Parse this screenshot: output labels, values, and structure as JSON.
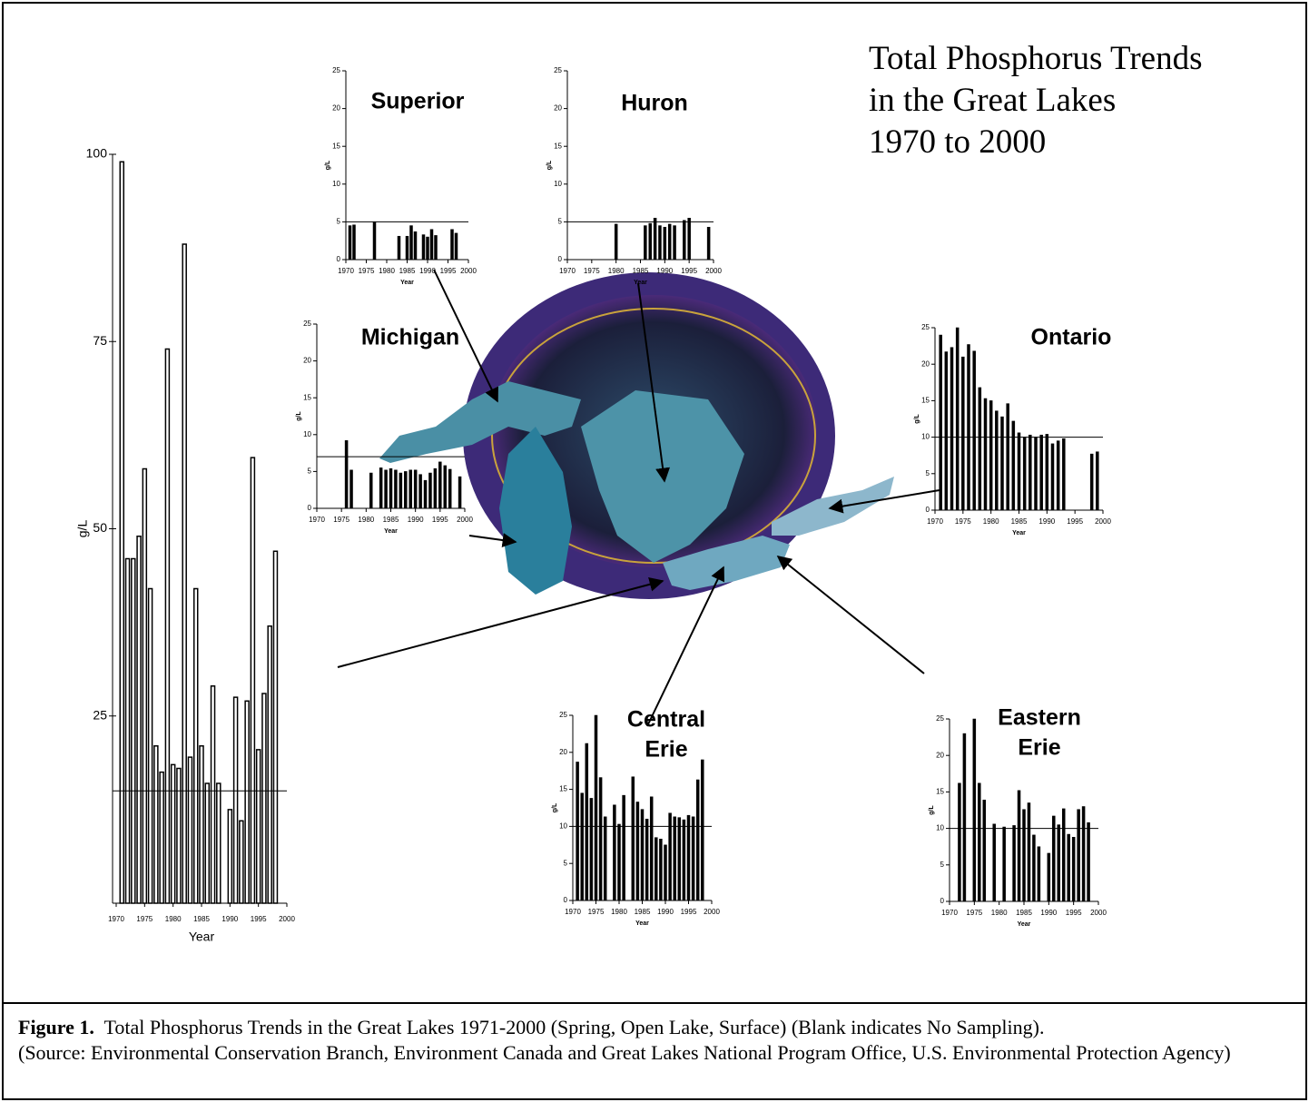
{
  "figure_title": [
    "Total Phosphorus Trends",
    "in the Great Lakes",
    "1970 to 2000"
  ],
  "caption": {
    "label": "Figure 1.",
    "text": "Total Phosphorus Trends in the Great Lakes 1971-2000 (Spring, Open Lake, Surface) (Blank indicates No Sampling).",
    "source": "(Source:  Environmental Conservation Branch, Environment Canada and Great Lakes National Program Office, U.S. Environmental Protection Agency)"
  },
  "chart_data": [
    {
      "type": "bar",
      "xlabel": "Year",
      "ylabel": "g/L",
      "color": "#000000",
      "x": [
        1971,
        1972,
        1973,
        1974,
        1975,
        1976,
        1977,
        1978,
        1979,
        1980,
        1981,
        1982,
        1983,
        1984,
        1985,
        1986,
        1987,
        1988,
        1990,
        1991,
        1992,
        1993,
        1994,
        1995,
        1996,
        1997,
        1998
      ],
      "values": [
        99,
        46,
        46,
        49,
        58,
        42,
        21,
        17.5,
        74,
        18.5,
        18,
        88,
        19.5,
        42,
        21,
        16,
        29,
        16,
        12.5,
        27.5,
        11,
        27,
        59.5,
        20.5,
        28,
        37,
        47
      ],
      "reference_line": 15,
      "xlim": [
        1970,
        2000
      ],
      "xticks": [
        1970,
        1975,
        1980,
        1985,
        1990,
        1995,
        2000
      ],
      "ylim": [
        0,
        100
      ],
      "yticks": [
        25,
        50,
        75,
        100
      ]
    },
    {
      "type": "bar",
      "title": [
        "Superior"
      ],
      "xlabel": "Year",
      "ylabel": "g/L",
      "color": "#000000",
      "x": [
        1971,
        1972,
        1977,
        1983,
        1985,
        1986,
        1987,
        1989,
        1990,
        1991,
        1992,
        1996,
        1997
      ],
      "values": [
        4.5,
        4.6,
        5,
        3.1,
        3.1,
        4.5,
        3.7,
        3.3,
        3,
        4,
        3.2,
        4,
        3.5
      ],
      "reference_line": 5,
      "xlim": [
        1970,
        2000
      ],
      "xticks": [
        1970,
        1975,
        1980,
        1985,
        1990,
        1995,
        2000
      ],
      "ylim": [
        0,
        25
      ],
      "yticks": [
        0,
        5,
        10,
        15,
        20,
        25
      ]
    },
    {
      "type": "bar",
      "title": [
        "Huron"
      ],
      "xlabel": "Year",
      "ylabel": "g/L",
      "color": "#000000",
      "x": [
        1980,
        1986,
        1987,
        1988,
        1989,
        1990,
        1991,
        1992,
        1994,
        1995,
        1999
      ],
      "values": [
        4.7,
        4.5,
        4.8,
        5.5,
        4.5,
        4.3,
        4.7,
        4.5,
        5.2,
        5.5,
        4.3
      ],
      "reference_line": 5,
      "xlim": [
        1970,
        2000
      ],
      "xticks": [
        1970,
        1975,
        1980,
        1985,
        1990,
        1995,
        2000
      ],
      "ylim": [
        0,
        25
      ],
      "yticks": [
        0,
        5,
        10,
        15,
        20,
        25
      ]
    },
    {
      "type": "bar",
      "title": [
        "Michigan"
      ],
      "xlabel": "Year",
      "ylabel": "g/L",
      "color": "#000000",
      "x": [
        1976,
        1977,
        1981,
        1983,
        1984,
        1985,
        1986,
        1987,
        1988,
        1989,
        1990,
        1991,
        1992,
        1993,
        1994,
        1995,
        1996,
        1997,
        1999
      ],
      "values": [
        9.2,
        5.2,
        4.8,
        5.5,
        5.2,
        5.4,
        5.2,
        4.8,
        5,
        5.2,
        5.2,
        4.6,
        3.8,
        4.8,
        5.4,
        6.3,
        5.8,
        5.3,
        4.3
      ],
      "reference_line": 7,
      "xlim": [
        1970,
        2000
      ],
      "xticks": [
        1970,
        1975,
        1980,
        1985,
        1990,
        1995,
        2000
      ],
      "ylim": [
        0,
        25
      ],
      "yticks": [
        0,
        5,
        10,
        15,
        20,
        25
      ]
    },
    {
      "type": "bar",
      "title": [
        "Ontario"
      ],
      "xlabel": "Year",
      "ylabel": "g/L",
      "color": "#000000",
      "x": [
        1971,
        1972,
        1973,
        1974,
        1975,
        1976,
        1977,
        1978,
        1979,
        1980,
        1981,
        1982,
        1983,
        1984,
        1985,
        1986,
        1987,
        1988,
        1989,
        1990,
        1991,
        1992,
        1993,
        1998,
        1999
      ],
      "values": [
        24,
        21.7,
        22.3,
        25,
        21,
        22.7,
        21.8,
        16.8,
        15.3,
        15,
        13.6,
        12.8,
        14.6,
        12.2,
        10.6,
        10,
        10.3,
        10,
        10.3,
        10.4,
        9.1,
        9.5,
        9.8,
        7.7,
        8
      ],
      "reference_line": 10,
      "xlim": [
        1970,
        2000
      ],
      "xticks": [
        1970,
        1975,
        1980,
        1985,
        1990,
        1995,
        2000
      ],
      "ylim": [
        0,
        25
      ],
      "yticks": [
        0,
        5,
        10,
        15,
        20,
        25
      ]
    },
    {
      "type": "bar",
      "title": [
        "Central",
        "Erie"
      ],
      "xlabel": "Year",
      "ylabel": "g/L",
      "color": "#000000",
      "x": [
        1971,
        1972,
        1973,
        1974,
        1975,
        1976,
        1977,
        1979,
        1980,
        1981,
        1983,
        1984,
        1985,
        1986,
        1987,
        1988,
        1989,
        1990,
        1991,
        1992,
        1993,
        1994,
        1995,
        1996,
        1997,
        1998
      ],
      "values": [
        18.7,
        14.5,
        21.2,
        13.8,
        25,
        16.6,
        11.3,
        12.9,
        10.3,
        14.2,
        16.7,
        13.3,
        12.3,
        11,
        14,
        8.5,
        8.3,
        7.5,
        11.8,
        11.3,
        11.2,
        10.9,
        11.5,
        11.3,
        16.3,
        19
      ],
      "reference_line": 10,
      "xlim": [
        1970,
        2000
      ],
      "xticks": [
        1970,
        1975,
        1980,
        1985,
        1990,
        1995,
        2000
      ],
      "ylim": [
        0,
        25
      ],
      "yticks": [
        0,
        5,
        10,
        15,
        20,
        25
      ]
    },
    {
      "type": "bar",
      "title": [
        "Eastern",
        "Erie"
      ],
      "xlabel": "Year",
      "ylabel": "g/L",
      "color": "#000000",
      "x": [
        1972,
        1973,
        1975,
        1976,
        1977,
        1979,
        1981,
        1983,
        1984,
        1985,
        1986,
        1987,
        1988,
        1990,
        1991,
        1992,
        1993,
        1994,
        1995,
        1996,
        1997,
        1998
      ],
      "values": [
        16.2,
        23,
        25,
        16.2,
        13.9,
        10.6,
        10.2,
        10.4,
        15.2,
        12.6,
        13.5,
        9.1,
        7.5,
        6.6,
        11.7,
        10.5,
        12.7,
        9.2,
        8.8,
        12.6,
        13,
        10.8
      ],
      "reference_line": 10,
      "xlim": [
        1970,
        2000
      ],
      "xticks": [
        1970,
        1975,
        1980,
        1985,
        1990,
        1995,
        2000
      ],
      "ylim": [
        0,
        25
      ],
      "yticks": [
        0,
        5,
        10,
        15,
        20,
        25
      ]
    }
  ]
}
